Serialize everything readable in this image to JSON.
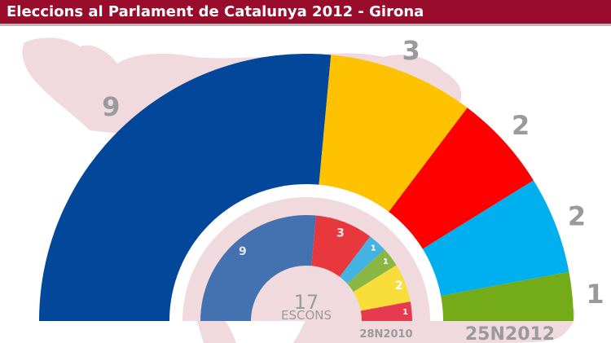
{
  "header": {
    "title": "Eleccions al Parlament de Catalunya 2012 - Girona"
  },
  "chart_data": [
    {
      "type": "pie",
      "shape": "semicircle",
      "label": "25N2012",
      "total_seats": 17,
      "slices": [
        {
          "seats": 9,
          "color": "#02479a"
        },
        {
          "seats": 3,
          "color": "#fec200"
        },
        {
          "seats": 2,
          "color": "#fe0000"
        },
        {
          "seats": 2,
          "color": "#00b0ee"
        },
        {
          "seats": 1,
          "color": "#74ac19"
        }
      ]
    },
    {
      "type": "pie",
      "shape": "semicircle",
      "label": "28N2010",
      "total_seats": 17,
      "center_number": "17",
      "center_label": "ESCONS",
      "slices": [
        {
          "seats": 9,
          "color": "#4472b0"
        },
        {
          "seats": 3,
          "color": "#e8383e"
        },
        {
          "seats": 1,
          "color": "#44b3e1"
        },
        {
          "seats": 1,
          "color": "#8ab644"
        },
        {
          "seats": 2,
          "color": "#f9de3b"
        },
        {
          "seats": 1,
          "color": "#e63b4f"
        }
      ]
    }
  ],
  "colors": {
    "header_bg": "#9a0c2c",
    "header_border": "#b9b9b9",
    "map": "#f0dadd",
    "label_grey": "#9a9a9a"
  }
}
